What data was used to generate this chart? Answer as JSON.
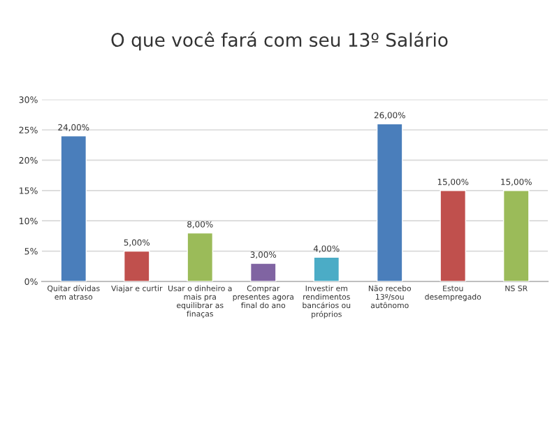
{
  "chart_data": {
    "type": "bar",
    "title": "O que você fará com seu 13º Salário",
    "categories": [
      "Quitar dívidas\nem atraso",
      "Viajar e curtir",
      "Usar o dinheiro a\nmais pra\nequilibrar as\nfinaças",
      "Comprar\npresentes agora\nfinal do ano",
      "Investir em\nrendimentos\nbancários ou\npróprios",
      "Não recebo\n13º/sou\nautônomo",
      "Estou\ndesempregado",
      "NS SR"
    ],
    "values": [
      24,
      5,
      8,
      3,
      4,
      26,
      15,
      15
    ],
    "colors": [
      "#4a7ebb",
      "#c0504d",
      "#9bbb59",
      "#8064a2",
      "#4bacc6",
      "#4a7ebb",
      "#c0504d",
      "#9bbb59"
    ],
    "value_labels": [
      "24,00%",
      "5,00%",
      "8,00%",
      "3,00%",
      "4,00%",
      "26,00%",
      "15,00%",
      "15,00%"
    ],
    "ylim": [
      0,
      30
    ],
    "yticks": [
      {
        "value": 0,
        "label": "0%"
      },
      {
        "value": 5,
        "label": "5%"
      },
      {
        "value": 10,
        "label": "10%"
      },
      {
        "value": 15,
        "label": "15%"
      },
      {
        "value": 20,
        "label": "20%"
      },
      {
        "value": 25,
        "label": "25%"
      },
      {
        "value": 30,
        "label": "30%"
      }
    ],
    "grid": "y",
    "legend": false
  }
}
